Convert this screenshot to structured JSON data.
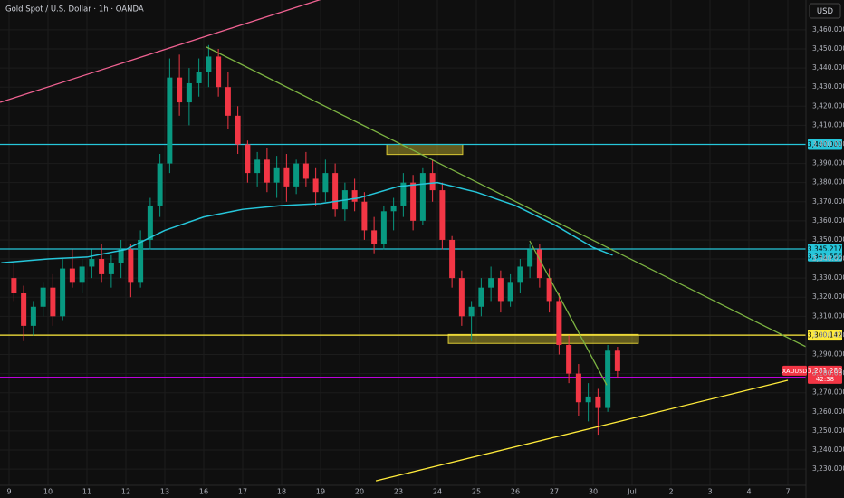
{
  "chart_data": {
    "type": "candlestick",
    "title": "Gold Spot / U.S. Dollar · 1h · OANDA",
    "currency": "USD",
    "symbol": "XAUUSD",
    "countdown": "42:38",
    "up_color": "#089981",
    "down_color": "#f23645",
    "grid": true,
    "categories": [
      "9",
      "10",
      "11",
      "12",
      "13",
      "16",
      "17",
      "18",
      "19",
      "20",
      "23",
      "24",
      "25",
      "26",
      "27",
      "30",
      "Jul",
      "2",
      "3",
      "4",
      "7"
    ],
    "ylim": [
      3221.5,
      3475.6
    ],
    "yticks": [
      {
        "value": 3230,
        "label": "3,230.000"
      },
      {
        "value": 3240,
        "label": "3,240.000"
      },
      {
        "value": 3250,
        "label": "3,250.000"
      },
      {
        "value": 3260,
        "label": "3,260.000"
      },
      {
        "value": 3270,
        "label": "3,270.000"
      },
      {
        "value": 3280,
        "label": "3,280.000"
      },
      {
        "value": 3290,
        "label": "3,290.000"
      },
      {
        "value": 3300,
        "label": "3,300.000"
      },
      {
        "value": 3310,
        "label": "3,310.000"
      },
      {
        "value": 3320,
        "label": "3,320.000"
      },
      {
        "value": 3330,
        "label": "3,330.000"
      },
      {
        "value": 3340,
        "label": "3,340.000"
      },
      {
        "value": 3350,
        "label": "3,350.000"
      },
      {
        "value": 3360,
        "label": "3,360.000"
      },
      {
        "value": 3370,
        "label": "3,370.000"
      },
      {
        "value": 3380,
        "label": "3,380.000"
      },
      {
        "value": 3390,
        "label": "3,390.000"
      },
      {
        "value": 3400,
        "label": "3,400.000"
      },
      {
        "value": 3410,
        "label": "3,410.000"
      },
      {
        "value": 3420,
        "label": "3,420.000"
      },
      {
        "value": 3430,
        "label": "3,430.000"
      },
      {
        "value": 3440,
        "label": "3,440.000"
      },
      {
        "value": 3450,
        "label": "3,450.000"
      },
      {
        "value": 3460,
        "label": "3,460.000"
      }
    ],
    "candles": {
      "open": [
        3330,
        3322,
        3305,
        3315,
        3325,
        3310,
        3335,
        3328,
        3336,
        3340,
        3332,
        3338,
        3345,
        3328,
        3350,
        3368,
        3390,
        3435,
        3422,
        3432,
        3438,
        3446,
        3430,
        3415,
        3400,
        3385,
        3392,
        3380,
        3388,
        3378,
        3390,
        3382,
        3375,
        3385,
        3366,
        3376,
        3370,
        3355,
        3348,
        3365,
        3368,
        3380,
        3360,
        3385,
        3376,
        3350,
        3330,
        3310,
        3315,
        3325,
        3330,
        3318,
        3328,
        3336,
        3345,
        3330,
        3318,
        3295,
        3280,
        3265,
        3268,
        3262,
        3292
      ],
      "high": [
        3338,
        3326,
        3318,
        3328,
        3332,
        3340,
        3345,
        3340,
        3345,
        3348,
        3342,
        3350,
        3348,
        3355,
        3372,
        3395,
        3445,
        3447,
        3440,
        3445,
        3452,
        3450,
        3438,
        3420,
        3402,
        3396,
        3398,
        3394,
        3395,
        3392,
        3396,
        3388,
        3392,
        3390,
        3380,
        3382,
        3375,
        3362,
        3368,
        3372,
        3385,
        3384,
        3388,
        3392,
        3380,
        3352,
        3334,
        3318,
        3330,
        3336,
        3334,
        3332,
        3340,
        3348,
        3348,
        3335,
        3322,
        3300,
        3285,
        3275,
        3272,
        3295,
        3294
      ],
      "low": [
        3318,
        3297,
        3300,
        3310,
        3305,
        3308,
        3325,
        3322,
        3330,
        3328,
        3325,
        3330,
        3320,
        3325,
        3345,
        3362,
        3385,
        3415,
        3410,
        3425,
        3430,
        3425,
        3408,
        3395,
        3380,
        3378,
        3375,
        3372,
        3370,
        3374,
        3378,
        3368,
        3370,
        3362,
        3360,
        3365,
        3350,
        3343,
        3345,
        3355,
        3362,
        3355,
        3358,
        3370,
        3345,
        3325,
        3305,
        3297,
        3310,
        3318,
        3312,
        3315,
        3322,
        3330,
        3325,
        3312,
        3290,
        3275,
        3258,
        3255,
        3248,
        3260,
        3278
      ],
      "close": [
        3322,
        3305,
        3315,
        3325,
        3310,
        3335,
        3328,
        3336,
        3340,
        3332,
        3338,
        3345,
        3328,
        3350,
        3368,
        3390,
        3435,
        3422,
        3432,
        3438,
        3446,
        3430,
        3415,
        3400,
        3385,
        3392,
        3380,
        3388,
        3378,
        3390,
        3382,
        3375,
        3385,
        3366,
        3376,
        3370,
        3355,
        3348,
        3365,
        3368,
        3380,
        3360,
        3385,
        3376,
        3350,
        3330,
        3310,
        3315,
        3325,
        3330,
        3318,
        3328,
        3336,
        3345,
        3330,
        3318,
        3295,
        3280,
        3265,
        3268,
        3262,
        3292,
        3281.28
      ]
    },
    "moving_average": {
      "color": "#26c6da",
      "x": [
        -0.2,
        1,
        2,
        3,
        4,
        5,
        6,
        7,
        8,
        9,
        10,
        11,
        12,
        13,
        14,
        15,
        15.5
      ],
      "values": [
        3338,
        3340,
        3341,
        3345,
        3355,
        3362,
        3366,
        3368,
        3369,
        3372,
        3378,
        3380,
        3375,
        3368,
        3358,
        3346,
        3342
      ],
      "current": {
        "value": 3341.556,
        "label": "3,341.556"
      }
    },
    "levels": [
      {
        "value": 3400,
        "label": "3,400.000",
        "color": "#26c6da"
      },
      {
        "value": 3345.217,
        "label": "3,345.217",
        "color": "#26c6da"
      },
      {
        "value": 3300.142,
        "label": "3,300.142",
        "color": "#ffeb3b"
      },
      {
        "value": 3278,
        "label": "3,278.000",
        "color": "#d500f9"
      }
    ],
    "last_price": {
      "value": 3281.28,
      "label": "3,281.280",
      "color": "#f23645"
    },
    "trendlines": [
      {
        "x": [
          -0.23,
          8.02
        ],
        "values": [
          3422,
          3476
        ],
        "color": "#f06292"
      },
      {
        "x": [
          5.07,
          20.47
        ],
        "values": [
          3451,
          3294
        ],
        "color": "#7cb342"
      },
      {
        "x": [
          9.42,
          20
        ],
        "values": [
          3223.8,
          3276.5
        ],
        "color": "#ffeb3b"
      },
      {
        "x": [
          13.37,
          15.35
        ],
        "values": [
          3349.5,
          3274
        ],
        "color": "#7cb342"
      }
    ],
    "zones": [
      {
        "x": [
          9.7,
          11.65
        ],
        "values": [
          3394.7,
          3400
        ],
        "color": "#ffeb3b"
      },
      {
        "x": [
          11.28,
          16.16
        ],
        "values": [
          3295.8,
          3300.5
        ],
        "color": "#ffeb3b"
      }
    ]
  }
}
